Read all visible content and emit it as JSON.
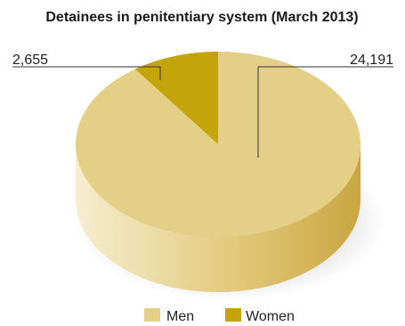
{
  "chart_data": {
    "type": "pie",
    "title": "Detainees in penitentiary system (March 2013)",
    "categories": [
      "Men",
      "Women"
    ],
    "values": [
      24191,
      2655
    ],
    "value_labels": [
      "24,191",
      "2,655"
    ],
    "colors": {
      "Men": "#e4cf86",
      "Women": "#c4a30b"
    },
    "legend": {
      "position": "bottom",
      "entries": [
        "Men",
        "Women"
      ]
    }
  }
}
